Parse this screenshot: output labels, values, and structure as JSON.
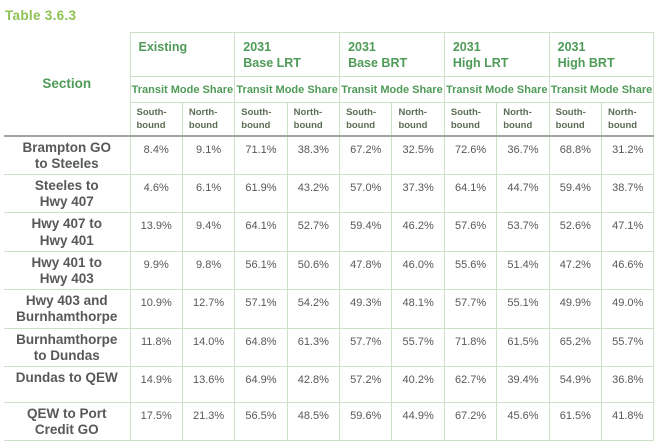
{
  "title": "Table 3.6.3",
  "colors": {
    "title_green": "#8ec253",
    "header_green": "#4f9b58",
    "direction_green": "#5d6d55",
    "grid_green": "#cfe0c8",
    "rule_gray": "#9aa79a",
    "text_gray": "#57585a"
  },
  "table": {
    "section_header": "Section",
    "mode_share_label": "Transit Mode Share",
    "directions": [
      "South-\nbound",
      "North-\nbound"
    ],
    "groups": [
      {
        "label": "Existing"
      },
      {
        "label": "2031\nBase LRT"
      },
      {
        "label": "2031\nBase BRT"
      },
      {
        "label": "2031\nHigh LRT"
      },
      {
        "label": "2031\nHigh BRT"
      }
    ],
    "rows": [
      {
        "section": "Brampton GO\nto Steeles",
        "values": [
          "8.4%",
          "9.1%",
          "71.1%",
          "38.3%",
          "67.2%",
          "32.5%",
          "72.6%",
          "36.7%",
          "68.8%",
          "31.2%"
        ]
      },
      {
        "section": "Steeles to\nHwy 407",
        "values": [
          "4.6%",
          "6.1%",
          "61.9%",
          "43.2%",
          "57.0%",
          "37.3%",
          "64.1%",
          "44.7%",
          "59.4%",
          "38.7%"
        ]
      },
      {
        "section": "Hwy 407 to\nHwy 401",
        "values": [
          "13.9%",
          "9.4%",
          "64.1%",
          "52.7%",
          "59.4%",
          "46.2%",
          "57.6%",
          "53.7%",
          "52.6%",
          "47.1%"
        ]
      },
      {
        "section": "Hwy 401 to\nHwy 403",
        "values": [
          "9.9%",
          "9.8%",
          "56.1%",
          "50.6%",
          "47.8%",
          "46.0%",
          "55.6%",
          "51.4%",
          "47.2%",
          "46.6%"
        ]
      },
      {
        "section": "Hwy 403 and\nBurnhamthorpe",
        "values": [
          "10.9%",
          "12.7%",
          "57.1%",
          "54.2%",
          "49.3%",
          "48.1%",
          "57.7%",
          "55.1%",
          "49.9%",
          "49.0%"
        ]
      },
      {
        "section": "Burnhamthorpe\nto Dundas",
        "values": [
          "11.8%",
          "14.0%",
          "64.8%",
          "61.3%",
          "57.7%",
          "55.7%",
          "71.8%",
          "61.5%",
          "65.2%",
          "55.7%"
        ]
      },
      {
        "section": "Dundas to QEW",
        "values": [
          "14.9%",
          "13.6%",
          "64.9%",
          "42.8%",
          "57.2%",
          "40.2%",
          "62.7%",
          "39.4%",
          "54.9%",
          "36.8%"
        ]
      },
      {
        "section": "QEW to Port\nCredit GO",
        "values": [
          "17.5%",
          "21.3%",
          "56.5%",
          "48.5%",
          "59.6%",
          "44.9%",
          "67.2%",
          "45.6%",
          "61.5%",
          "41.8%"
        ]
      }
    ]
  }
}
